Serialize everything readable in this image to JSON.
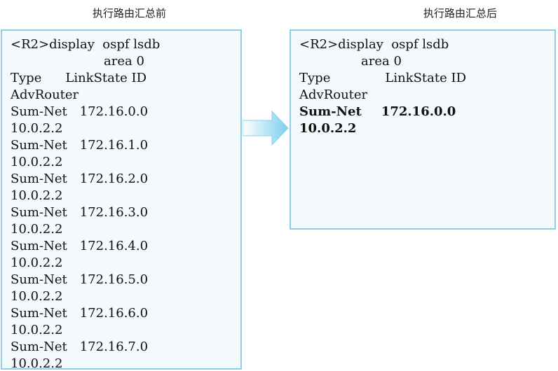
{
  "before": {
    "caption": "执行路由汇总前",
    "command_line1": "<R2>display  ospf lsdb",
    "command_line2": "area 0",
    "header_type": "Type",
    "header_linkstate": "LinkState ID",
    "header_advrouter": "AdvRouter",
    "rows": [
      {
        "type": "Sum-Net",
        "linkstate_id": "172.16.0.0",
        "adv_router": "10.0.2.2"
      },
      {
        "type": "Sum-Net",
        "linkstate_id": "172.16.1.0",
        "adv_router": "10.0.2.2"
      },
      {
        "type": "Sum-Net",
        "linkstate_id": "172.16.2.0",
        "adv_router": "10.0.2.2"
      },
      {
        "type": "Sum-Net",
        "linkstate_id": "172.16.3.0",
        "adv_router": "10.0.2.2"
      },
      {
        "type": "Sum-Net",
        "linkstate_id": "172.16.4.0",
        "adv_router": "10.0.2.2"
      },
      {
        "type": "Sum-Net",
        "linkstate_id": "172.16.5.0",
        "adv_router": "10.0.2.2"
      },
      {
        "type": "Sum-Net",
        "linkstate_id": "172.16.6.0",
        "adv_router": "10.0.2.2"
      },
      {
        "type": "Sum-Net",
        "linkstate_id": "172.16.7.0",
        "adv_router": "10.0.2.2"
      }
    ]
  },
  "after": {
    "caption": "执行路由汇总后",
    "command_line1": "<R2>display  ospf lsdb",
    "command_line2": "area 0",
    "header_type": "Type",
    "header_linkstate": "LinkState ID",
    "header_advrouter": "AdvRouter",
    "rows": [
      {
        "type": "Sum-Net",
        "linkstate_id": "172.16.0.0",
        "adv_router": "10.0.2.2"
      }
    ]
  },
  "colors": {
    "panel_border": "#8fd0e8",
    "panel_bg": "#f4f9fc",
    "arrow_fill": "#7ccff0"
  },
  "icons": {
    "transition": "right-arrow-icon"
  }
}
